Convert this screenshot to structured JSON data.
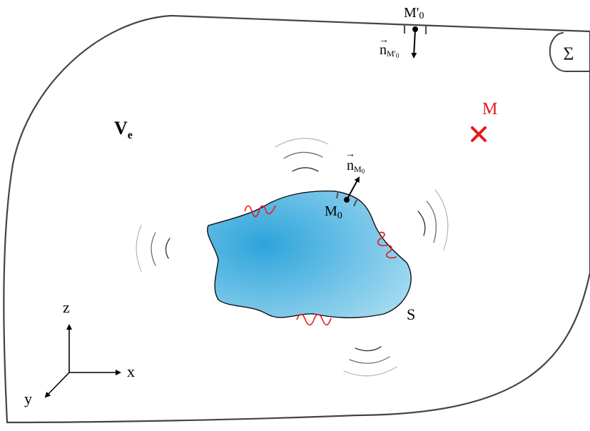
{
  "labels": {
    "volume": "V",
    "volume_sub": "e",
    "surface_outer": "Σ",
    "surface_body": "S",
    "point_M": "M",
    "point_M0": "M",
    "point_M0_sub": "0",
    "point_M0_prime": "M'",
    "point_M0_prime_sub": "0",
    "normal": "n",
    "normal_M0_sub": "M",
    "normal_M0_subsub": "0",
    "normal_M0p_sub": "M'",
    "normal_M0p_subsub": "0",
    "axis_x": "x",
    "axis_y": "y",
    "axis_z": "z",
    "vector_arrow": "→"
  },
  "colors": {
    "outline": "#444444",
    "body_light": "#a8dcf2",
    "body_dark": "#2ea4db",
    "accent": "#e8191a",
    "wave_dark": "#3a3a3a",
    "wave_light": "#b4b4b4"
  }
}
